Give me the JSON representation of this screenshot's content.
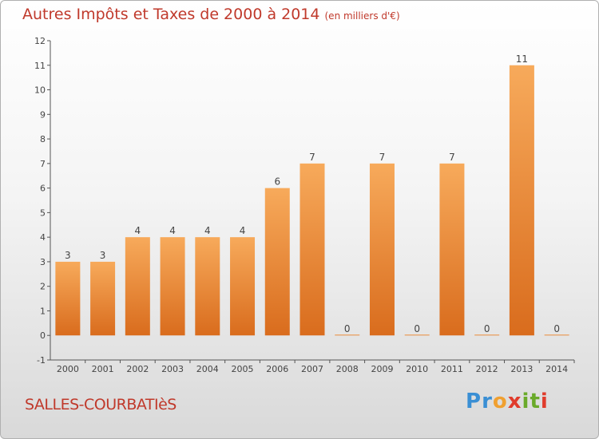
{
  "title": "Autres Impôts et Taxes de 2000 à 2014",
  "title_unit": "(en milliers d'€)",
  "location": "SALLES-COURBATIèS",
  "logo": {
    "letters": [
      "P",
      "r",
      "o",
      "x",
      "i",
      "t",
      "i"
    ],
    "colors": [
      "#3a8fd4",
      "#3a8fd4",
      "#f0a030",
      "#e03c2c",
      "#6aaa2a",
      "#6aaa2a",
      "#e03c2c"
    ]
  },
  "colors": {
    "bar_top": "#f7aa5b",
    "bar_bottom": "#d96c1d",
    "text": "#c0392b",
    "axis_text": "#444444"
  },
  "chart_data": {
    "type": "bar",
    "title": "Autres Impôts et Taxes de 2000 à 2014",
    "categories": [
      "2000",
      "2001",
      "2002",
      "2003",
      "2004",
      "2005",
      "2006",
      "2007",
      "2008",
      "2009",
      "2010",
      "2011",
      "2012",
      "2013",
      "2014"
    ],
    "values": [
      3,
      3,
      4,
      4,
      4,
      4,
      6,
      7,
      0,
      7,
      0,
      7,
      0,
      11,
      0
    ],
    "yticks": [
      "-1",
      "0",
      "1",
      "2",
      "3",
      "4",
      "5",
      "6",
      "7",
      "8",
      "9",
      "10",
      "11",
      "12"
    ],
    "ylim": [
      -1,
      12
    ],
    "grid": false,
    "legend": "none"
  }
}
